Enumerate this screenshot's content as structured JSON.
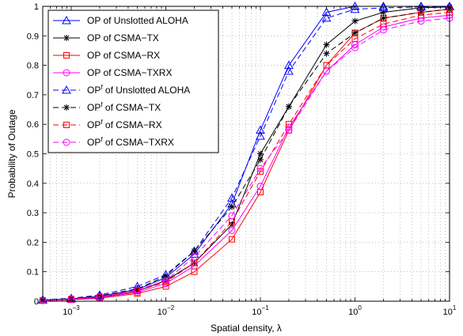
{
  "chart_data": {
    "type": "line",
    "xscale": "log",
    "xlim": [
      0.0005,
      10
    ],
    "ylim": [
      0,
      1
    ],
    "xlabel": "Spatial density, λ",
    "ylabel": "Probability of Outage",
    "grid": true,
    "legend_position": "top-left",
    "x": [
      0.0005,
      0.001,
      0.002,
      0.005,
      0.01,
      0.02,
      0.05,
      0.1,
      0.2,
      0.5,
      1,
      2,
      5,
      10
    ],
    "xticks": [
      {
        "value": 0.001,
        "base": "10",
        "exp": "−3"
      },
      {
        "value": 0.01,
        "base": "10",
        "exp": "−2"
      },
      {
        "value": 0.1,
        "base": "10",
        "exp": "−1"
      },
      {
        "value": 1,
        "base": "10",
        "exp": "0"
      },
      {
        "value": 10,
        "base": "10",
        "exp": "1"
      }
    ],
    "yticks": [
      "0",
      "0.1",
      "0.2",
      "0.3",
      "0.4",
      "0.5",
      "0.6",
      "0.7",
      "0.8",
      "0.9",
      "1"
    ],
    "series": [
      {
        "name": "OP of Unslotted ALOHA",
        "sup": "",
        "name_after": "",
        "color": "#0000ff",
        "dash": "solid",
        "marker": "triangle",
        "values": [
          0.004,
          0.008,
          0.017,
          0.04,
          0.08,
          0.16,
          0.33,
          0.58,
          0.8,
          0.98,
          1.0,
          1.0,
          1.0,
          1.0
        ]
      },
      {
        "name": "OP of CSMA−TX",
        "sup": "",
        "name_after": "",
        "color": "#000000",
        "dash": "solid",
        "marker": "star",
        "values": [
          0.003,
          0.007,
          0.014,
          0.034,
          0.07,
          0.13,
          0.26,
          0.5,
          0.66,
          0.87,
          0.95,
          0.98,
          0.995,
          0.998
        ]
      },
      {
        "name": "OP of CSMA−RX",
        "sup": "",
        "name_after": "",
        "color": "#ff0000",
        "dash": "solid",
        "marker": "square",
        "values": [
          0.002,
          0.005,
          0.01,
          0.026,
          0.05,
          0.1,
          0.21,
          0.37,
          0.58,
          0.8,
          0.91,
          0.96,
          0.98,
          0.99
        ]
      },
      {
        "name": "OP of CSMA−TXRX",
        "sup": "",
        "name_after": "",
        "color": "#ff00ff",
        "dash": "solid",
        "marker": "circle",
        "values": [
          0.002,
          0.006,
          0.012,
          0.03,
          0.06,
          0.12,
          0.24,
          0.39,
          0.59,
          0.78,
          0.87,
          0.93,
          0.96,
          0.97
        ]
      },
      {
        "name": "OP",
        "sup": "f",
        "name_after": " of Unslotted ALOHA",
        "color": "#0000ff",
        "dash": "dashed",
        "marker": "triangle",
        "values": [
          0.005,
          0.01,
          0.021,
          0.05,
          0.09,
          0.17,
          0.35,
          0.56,
          0.78,
          0.96,
          0.99,
          0.995,
          0.998,
          0.999
        ]
      },
      {
        "name": "OP",
        "sup": "f",
        "name_after": " of CSMA−TX",
        "color": "#000000",
        "dash": "dashed",
        "marker": "star",
        "values": [
          0.004,
          0.009,
          0.018,
          0.042,
          0.085,
          0.17,
          0.32,
          0.48,
          0.66,
          0.84,
          0.91,
          0.96,
          0.98,
          0.99
        ]
      },
      {
        "name": "OP",
        "sup": "f",
        "name_after": " of CSMA−RX",
        "color": "#ff0000",
        "dash": "dashed",
        "marker": "square",
        "values": [
          0.003,
          0.007,
          0.014,
          0.035,
          0.065,
          0.13,
          0.27,
          0.44,
          0.6,
          0.8,
          0.89,
          0.94,
          0.97,
          0.98
        ]
      },
      {
        "name": "OP",
        "sup": "f",
        "name_after": " of CSMA−TXRX",
        "color": "#ff00ff",
        "dash": "dashed",
        "marker": "circle",
        "values": [
          0.003,
          0.008,
          0.015,
          0.038,
          0.07,
          0.15,
          0.29,
          0.45,
          0.58,
          0.78,
          0.86,
          0.92,
          0.95,
          0.96
        ]
      }
    ]
  }
}
